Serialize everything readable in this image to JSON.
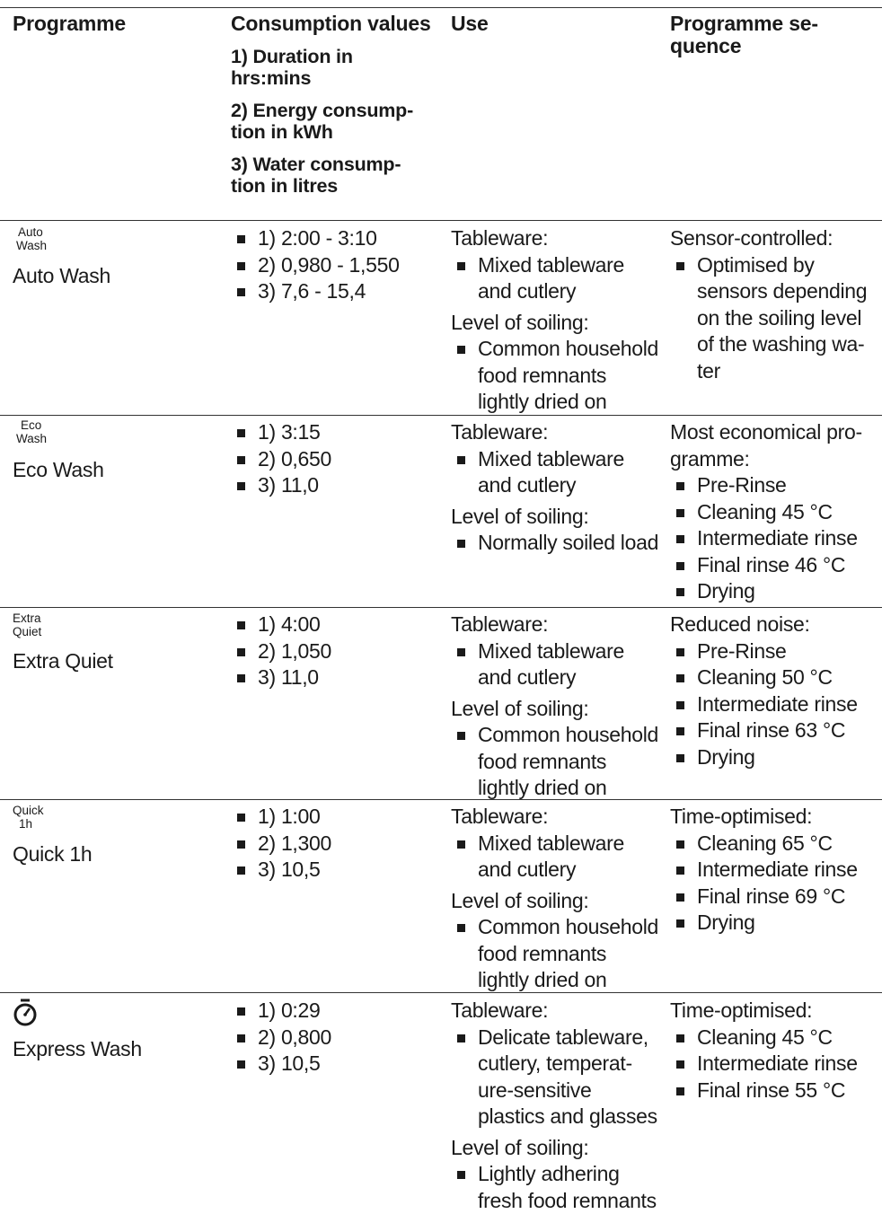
{
  "header": {
    "programme": "Programme",
    "consumption": "Consumption values",
    "consumption_lines": [
      "1) Duration in hrs:mins",
      "2) Energy consump-tion in kWh",
      "3) Water consump-tion in litres"
    ],
    "use": "Use",
    "sequence": "Programme se-quence"
  },
  "rows": [
    {
      "icon_label": [
        "Auto",
        "Wash"
      ],
      "name": "Auto Wash",
      "values": [
        "1) 2:00 - 3:10",
        "2) 0,980 - 1,550",
        "3) 7,6 - 15,4"
      ],
      "tableware_label": "Tableware:",
      "tableware": [
        "Mixed tableware",
        "and cutlery"
      ],
      "soil_label": "Level of soiling:",
      "soil": [
        "Common household",
        "food remnants",
        "lightly dried on"
      ],
      "seq_label": "Sensor-controlled:",
      "seq": [
        [
          "Optimised by",
          "sensors depending",
          "on the soiling level",
          "of the washing wa-",
          "ter"
        ]
      ]
    },
    {
      "icon_label": [
        "Eco",
        "Wash"
      ],
      "name": "Eco Wash",
      "values": [
        "1) 3:15",
        "2) 0,650",
        "3) 11,0"
      ],
      "tableware_label": "Tableware:",
      "tableware": [
        "Mixed tableware",
        "and cutlery"
      ],
      "soil_label": "Level of soiling:",
      "soil": [
        "Normally soiled load"
      ],
      "seq_label": "Most economical pro- gramme:",
      "seq": [
        [
          "Pre-Rinse"
        ],
        [
          "Cleaning 45 °C"
        ],
        [
          "Intermediate rinse"
        ],
        [
          "Final rinse 46 °C"
        ],
        [
          "Drying"
        ]
      ]
    },
    {
      "icon_label": [
        "Extra",
        "Quiet"
      ],
      "name": "Extra Quiet",
      "values": [
        "1) 4:00",
        "2) 1,050",
        "3) 11,0"
      ],
      "tableware_label": "Tableware:",
      "tableware": [
        "Mixed tableware",
        "and cutlery"
      ],
      "soil_label": "Level of soiling:",
      "soil": [
        "Common household",
        "food remnants",
        "lightly dried on"
      ],
      "seq_label": "Reduced noise:",
      "seq": [
        [
          "Pre-Rinse"
        ],
        [
          "Cleaning 50 °C"
        ],
        [
          "Intermediate rinse"
        ],
        [
          "Final rinse 63 °C"
        ],
        [
          "Drying"
        ]
      ]
    },
    {
      "icon_label": [
        "Quick",
        "1h"
      ],
      "name": "Quick 1h",
      "values": [
        "1) 1:00",
        "2) 1,300",
        "3) 10,5"
      ],
      "tableware_label": "Tableware:",
      "tableware": [
        "Mixed tableware",
        "and cutlery"
      ],
      "soil_label": "Level of soiling:",
      "soil": [
        "Common household",
        "food remnants",
        "lightly dried on"
      ],
      "seq_label": "Time-optimised:",
      "seq": [
        [
          "Cleaning 65 °C"
        ],
        [
          "Intermediate rinse"
        ],
        [
          "Final rinse 69 °C"
        ],
        [
          "Drying"
        ]
      ]
    },
    {
      "icon_label": [],
      "icon": "stopwatch-icon",
      "name": "Express Wash",
      "values": [
        "1) 0:29",
        "2) 0,800",
        "3) 10,5"
      ],
      "tableware_label": "Tableware:",
      "tableware": [
        "Delicate tableware,",
        "cutlery, temperat-",
        "ure-sensitive",
        "plastics and glasses"
      ],
      "soil_label": "Level of soiling:",
      "soil": [
        "Lightly adhering",
        "fresh food remnants"
      ],
      "seq_label": "Time-optimised:",
      "seq": [
        [
          "Cleaning 45 °C"
        ],
        [
          "Intermediate rinse"
        ],
        [
          "Final rinse 55 °C"
        ]
      ]
    }
  ]
}
